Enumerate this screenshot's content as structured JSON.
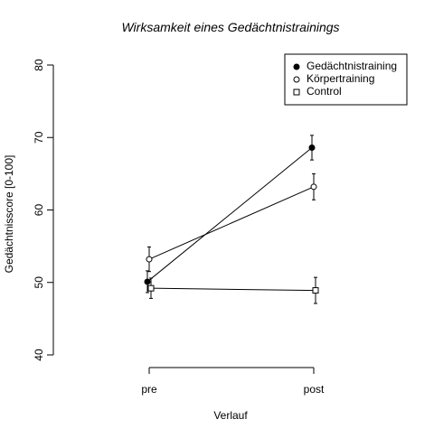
{
  "chart_data": {
    "type": "line",
    "title": "Wirksamkeit eines Gedächtnistrainings",
    "x_label": "Verlauf",
    "y_label": "Gedächtnisscore [0-100]",
    "categories": [
      "pre",
      "post"
    ],
    "series": [
      {
        "name": "Gedächtnistraining",
        "color": "#000000",
        "marker": "filled-circle",
        "values": [
          50.1,
          68.6
        ],
        "errors": [
          1.5,
          1.7
        ]
      },
      {
        "name": "Körpertraining",
        "color": "#000000",
        "marker": "open-circle",
        "values": [
          53.2,
          63.2
        ],
        "errors": [
          1.7,
          1.8
        ]
      },
      {
        "name": "Control",
        "color": "#000000",
        "marker": "open-square",
        "values": [
          49.2,
          48.9
        ],
        "errors": [
          1.4,
          1.8
        ]
      }
    ],
    "ylim": [
      40,
      80
    ],
    "yticks": [
      40,
      50,
      60,
      70,
      80
    ],
    "legend": "top-right"
  }
}
